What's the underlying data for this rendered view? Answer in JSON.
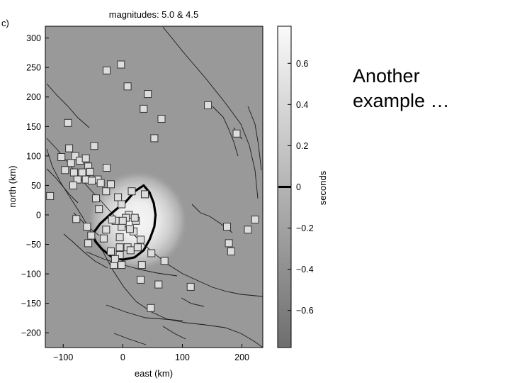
{
  "panel_label": "c)",
  "side_text": [
    "Another",
    "example …"
  ],
  "colors": {
    "background": "#ffffff",
    "map_gray": "#999999",
    "bright": "#f4f4f4",
    "contour": "#000000",
    "station_fill": "#dddddd"
  },
  "chart_data": {
    "type": "map",
    "title": "magnitudes: 5.0 & 4.5",
    "xlabel": "east (km)",
    "ylabel": "north (km)",
    "xlim": [
      -130,
      235
    ],
    "ylim": [
      -225,
      320
    ],
    "xticks": [
      "-100",
      "0",
      "100",
      "200"
    ],
    "xtick_values": [
      -100,
      0,
      100,
      200
    ],
    "yticks": [
      "300",
      "250",
      "200",
      "150",
      "100",
      "50",
      "0",
      "-50",
      "-100",
      "-150",
      "-200"
    ],
    "ytick_values": [
      300,
      250,
      200,
      150,
      100,
      50,
      0,
      -50,
      -100,
      -150,
      -200
    ],
    "colorbar": {
      "label": "seconds",
      "range": [
        -0.78,
        0.78
      ],
      "ticks": [
        "0.6",
        "0.4",
        "0.2",
        "0",
        "-0.2",
        "-0.4",
        "-0.6"
      ],
      "tick_values": [
        0.6,
        0.4,
        0.2,
        0,
        -0.2,
        -0.4,
        -0.6
      ],
      "highlight_value": 0
    },
    "anomaly": {
      "center": [
        25,
        -10
      ],
      "radius_km": 85
    },
    "zero_contour": [
      [
        -51,
        -33
      ],
      [
        -38,
        -15
      ],
      [
        -22,
        0
      ],
      [
        -8,
        12
      ],
      [
        2,
        19
      ],
      [
        10,
        28
      ],
      [
        20,
        40
      ],
      [
        35,
        50
      ],
      [
        45,
        38
      ],
      [
        52,
        20
      ],
      [
        55,
        0
      ],
      [
        53,
        -20
      ],
      [
        45,
        -42
      ],
      [
        35,
        -60
      ],
      [
        20,
        -72
      ],
      [
        0,
        -76
      ],
      [
        -20,
        -70
      ],
      [
        -35,
        -58
      ],
      [
        -46,
        -45
      ],
      [
        -51,
        -33
      ]
    ],
    "stations": [
      [
        -3,
        255
      ],
      [
        -27,
        245
      ],
      [
        8,
        218
      ],
      [
        42,
        205
      ],
      [
        35,
        180
      ],
      [
        65,
        163
      ],
      [
        53,
        130
      ],
      [
        -92,
        156
      ],
      [
        143,
        186
      ],
      [
        191,
        138
      ],
      [
        -103,
        98
      ],
      [
        -90,
        113
      ],
      [
        -80,
        100
      ],
      [
        -72,
        92
      ],
      [
        -62,
        96
      ],
      [
        -48,
        117
      ],
      [
        -58,
        82
      ],
      [
        -87,
        88
      ],
      [
        -97,
        76
      ],
      [
        -82,
        72
      ],
      [
        -68,
        72
      ],
      [
        -55,
        73
      ],
      [
        -42,
        60
      ],
      [
        -28,
        40
      ],
      [
        -20,
        52
      ],
      [
        -27,
        80
      ],
      [
        -76,
        60
      ],
      [
        -62,
        60
      ],
      [
        -52,
        58
      ],
      [
        -37,
        54
      ],
      [
        -83,
        50
      ],
      [
        -122,
        32
      ],
      [
        -45,
        28
      ],
      [
        -40,
        10
      ],
      [
        -78,
        -7
      ],
      [
        -60,
        -20
      ],
      [
        -53,
        -35
      ],
      [
        -58,
        -48
      ],
      [
        15,
        40
      ],
      [
        37,
        35
      ],
      [
        -8,
        30
      ],
      [
        -2,
        18
      ],
      [
        10,
        0
      ],
      [
        22,
        -10
      ],
      [
        5,
        -5
      ],
      [
        -2,
        -20
      ],
      [
        18,
        -28
      ],
      [
        30,
        -42
      ],
      [
        -5,
        -38
      ],
      [
        8,
        -55
      ],
      [
        -20,
        -62
      ],
      [
        13,
        -60
      ],
      [
        25,
        -55
      ],
      [
        -5,
        -68
      ],
      [
        -15,
        -85
      ],
      [
        -13,
        -75
      ],
      [
        32,
        -85
      ],
      [
        48,
        -65
      ],
      [
        70,
        -78
      ],
      [
        -2,
        -85
      ],
      [
        30,
        -110
      ],
      [
        60,
        -118
      ],
      [
        114,
        -122
      ],
      [
        47,
        -158
      ],
      [
        -5,
        -55
      ],
      [
        12,
        -24
      ],
      [
        -12,
        -10
      ],
      [
        -28,
        -25
      ],
      [
        20,
        -5
      ],
      [
        0,
        -10
      ],
      [
        175,
        -20
      ],
      [
        210,
        -25
      ],
      [
        222,
        -8
      ],
      [
        178,
        -48
      ],
      [
        182,
        -62
      ],
      [
        -18,
        -8
      ],
      [
        -32,
        -40
      ]
    ]
  }
}
